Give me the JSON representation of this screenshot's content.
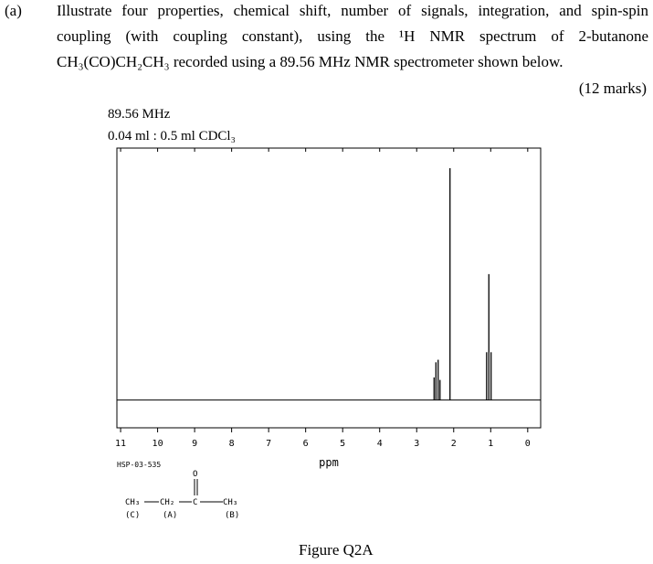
{
  "question": {
    "label": "(a)",
    "lines": [
      "Illustrate four properties, chemical shift, number of signals, integration, and spin-spin",
      "coupling (with coupling constant), using the ¹H NMR spectrum of 2-butanone",
      "CH₃(CO)CH₂CH₃ recorded using a 89.56 MHz NMR spectrometer shown below."
    ],
    "marks": "(12 marks)"
  },
  "figure": {
    "frequency": "89.56 MHz",
    "sample": "0.04 ml : 0.5 ml CDCl₃",
    "code": "HSP-03-535",
    "structure": {
      "groups": [
        "CH₃",
        "CH₂",
        "C",
        "O",
        "CH₃"
      ],
      "tags": [
        "(C)",
        "(A)",
        "(B)"
      ]
    },
    "caption": "Figure Q2A"
  },
  "chart_data": {
    "type": "spectrum",
    "xlabel": "ppm",
    "x": [
      2.53,
      2.48,
      2.42,
      2.37,
      2.1,
      1.11,
      1.05,
      0.99
    ],
    "values": [
      9,
      15,
      16,
      8,
      92,
      19,
      50,
      19
    ],
    "color": "#000000",
    "xlim": [
      11.1,
      -0.35
    ],
    "ylim": [
      -11,
      100
    ],
    "xticks": [
      11,
      10,
      9,
      8,
      7,
      6,
      5,
      4,
      3,
      2,
      1,
      0
    ]
  }
}
